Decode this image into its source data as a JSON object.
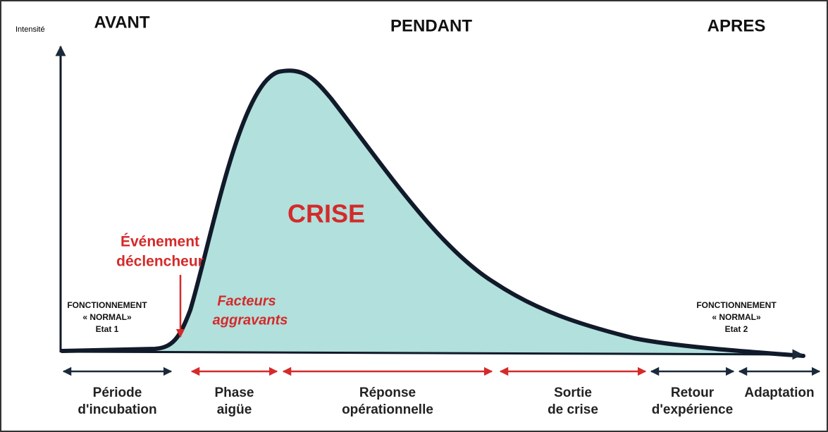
{
  "axis_label": "Intensité",
  "periods": [
    "AVANT",
    "PENDANT",
    "APRES"
  ],
  "crisis_label": "CRISE",
  "trigger": [
    "Événement",
    "déclencheur"
  ],
  "aggravating": [
    "Facteurs",
    "aggravants"
  ],
  "state_1": [
    "FONCTIONNEMENT",
    "« NORMAL»",
    "Etat 1"
  ],
  "state_2": [
    "FONCTIONNEMENT",
    "« NORMAL»",
    "Etat 2"
  ],
  "phases": [
    {
      "label": [
        "Période",
        "d'incubation"
      ],
      "color": "#1a2a3a"
    },
    {
      "label": [
        "Phase",
        "aigüe"
      ],
      "color": "#d42a2a"
    },
    {
      "label": [
        "Réponse",
        "opérationnelle"
      ],
      "color": "#d42a2a"
    },
    {
      "label": [
        "Sortie",
        "de crise"
      ],
      "color": "#d42a2a"
    },
    {
      "label": [
        "Retour",
        "d'expérience"
      ],
      "color": "#1a2a3a"
    },
    {
      "label": [
        "Adaptation"
      ],
      "color": "#1a2a3a"
    }
  ]
}
